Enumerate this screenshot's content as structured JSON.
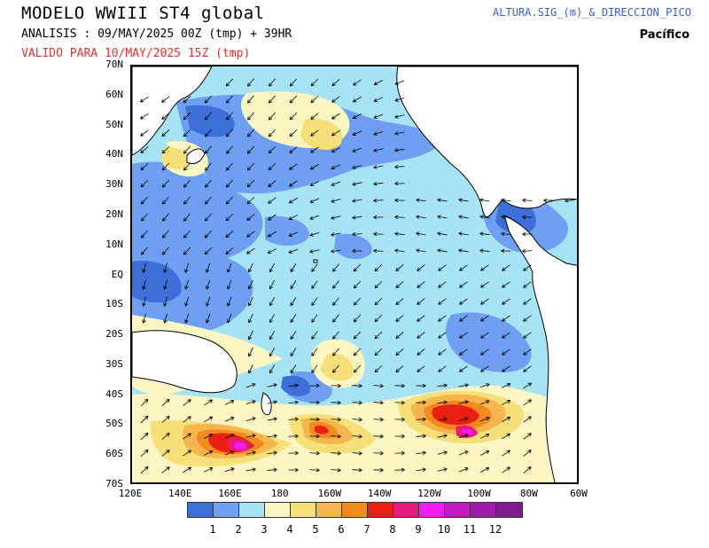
{
  "header": {
    "title": "MODELO WWIII ST4 global",
    "analysis": "ANALISIS : 09/MAY/2025 00Z  (tmp) + 39HR",
    "valid": "VALIDO PARA  10/MAY/2025 15Z  (tmp)",
    "product": "ALTURA.SIG_(m)_&_DIRECCION_PICO",
    "region": "Pacífico"
  },
  "map": {
    "lat_labels": [
      "70N",
      "60N",
      "50N",
      "40N",
      "30N",
      "20N",
      "10N",
      "EQ",
      "10S",
      "20S",
      "30S",
      "40S",
      "50S",
      "60S",
      "70S"
    ],
    "lon_labels": [
      "120E",
      "140E",
      "160E",
      "180",
      "160W",
      "140W",
      "120W",
      "100W",
      "80W",
      "60W"
    ]
  },
  "legend": {
    "labels": [
      "1",
      "2",
      "3",
      "4",
      "5",
      "6",
      "7",
      "8",
      "9",
      "10",
      "11",
      "12"
    ],
    "colors": [
      "#3d6fd8",
      "#6f9ff2",
      "#a6e3f4",
      "#fbf6c2",
      "#f7e07a",
      "#f7b54e",
      "#f28a1e",
      "#ea1f14",
      "#e61a7b",
      "#f21cf2",
      "#c31cc3",
      "#a11cab",
      "#7e1c8c"
    ]
  },
  "colors": {
    "land": "#ffffff",
    "coastline": "#000000",
    "valid_text": "#e53030",
    "product_text": "#3a5fd0"
  }
}
